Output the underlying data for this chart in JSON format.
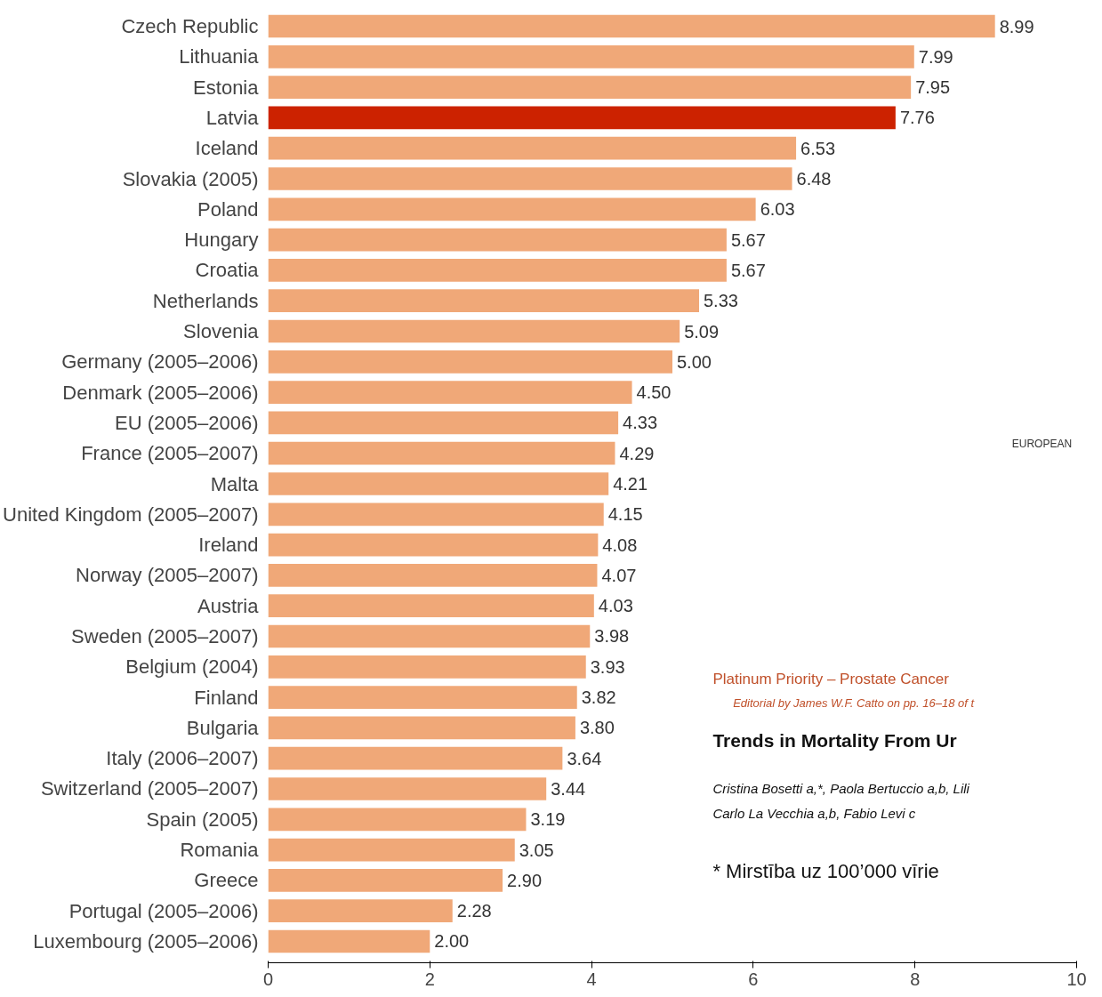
{
  "chart_data": {
    "type": "bar",
    "orientation": "horizontal",
    "categories": [
      "Czech Republic",
      "Lithuania",
      "Estonia",
      "Latvia",
      "Iceland",
      "Slovakia (2005)",
      "Poland",
      "Hungary",
      "Croatia",
      "Netherlands",
      "Slovenia",
      "Germany (2005–2006)",
      "Denmark (2005–2006)",
      "EU (2005–2006)",
      "France (2005–2007)",
      "Malta",
      "United Kingdom (2005–2007)",
      "Ireland",
      "Norway (2005–2007)",
      "Austria",
      "Sweden (2005–2007)",
      "Belgium (2004)",
      "Finland",
      "Bulgaria",
      "Italy (2006–2007)",
      "Switzerland (2005–2007)",
      "Spain (2005)",
      "Romania",
      "Greece",
      "Portugal (2005–2006)",
      "Luxembourg (2005–2006)"
    ],
    "values": [
      8.99,
      7.99,
      7.95,
      7.76,
      6.53,
      6.48,
      6.03,
      5.67,
      5.67,
      5.33,
      5.09,
      5.0,
      4.5,
      4.33,
      4.29,
      4.21,
      4.15,
      4.08,
      4.07,
      4.03,
      3.98,
      3.93,
      3.82,
      3.8,
      3.64,
      3.44,
      3.19,
      3.05,
      2.9,
      2.28,
      2.0
    ],
    "value_labels": [
      "8.99",
      "7.99",
      "7.95",
      "7.76",
      "6.53",
      "6.48",
      "6.03",
      "5.67",
      "5.67",
      "5.33",
      "5.09",
      "5.00",
      "4.50",
      "4.33",
      "4.29",
      "4.21",
      "4.15",
      "4.08",
      "4.07",
      "4.03",
      "3.98",
      "3.93",
      "3.82",
      "3.80",
      "3.64",
      "3.44",
      "3.19",
      "3.05",
      "2.90",
      "2.28",
      "2.00"
    ],
    "colors": [
      "#f0a878",
      "#f0a878",
      "#f0a878",
      "#cc2200",
      "#f0a878",
      "#f0a878",
      "#f0a878",
      "#f0a878",
      "#f0a878",
      "#f0a878",
      "#f0a878",
      "#f0a878",
      "#f0a878",
      "#f0a878",
      "#f0a878",
      "#f0a878",
      "#f0a878",
      "#f0a878",
      "#f0a878",
      "#f0a878",
      "#f0a878",
      "#f0a878",
      "#f0a878",
      "#f0a878",
      "#f0a878",
      "#f0a878",
      "#f0a878",
      "#f0a878",
      "#f0a878",
      "#f0a878",
      "#f0a878"
    ],
    "xlim": [
      0,
      10
    ],
    "xticks": [
      0,
      2,
      4,
      6,
      8,
      10
    ],
    "grid": false,
    "annotations": [
      "EUROPEAN",
      "Platinum Priority – Prostate Cancer",
      "Editorial by James W.F. Catto on pp. 16–18 of t",
      "Trends in Mortality From Ur",
      "Cristina Bosetti a,*, Paola Bertuccio a,b, Lili",
      "Carlo La Vecchia a,b, Fabio Levi c",
      "* Mirstība uz 100’000 vīrie"
    ]
  }
}
